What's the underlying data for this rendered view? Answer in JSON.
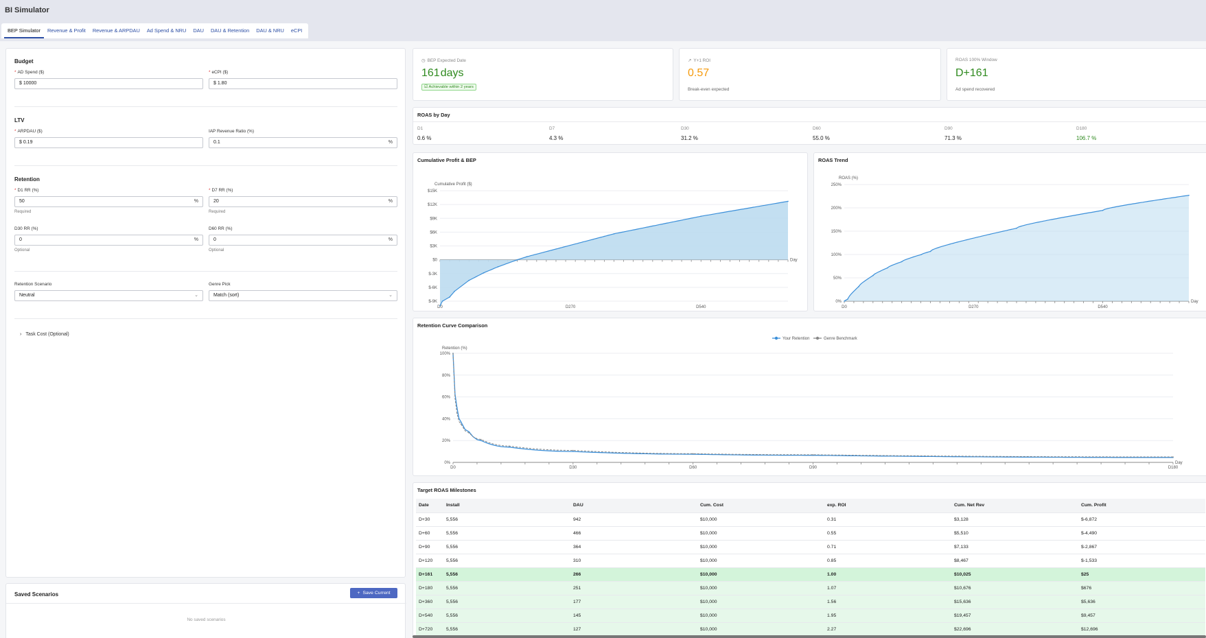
{
  "app": {
    "title": "BI Simulator"
  },
  "tabs": [
    {
      "label": "BEP Simulator"
    },
    {
      "label": "Revenue & Profit"
    },
    {
      "label": "Revenue & ARPDAU"
    },
    {
      "label": "Ad Spend & NRU"
    },
    {
      "label": "DAU"
    },
    {
      "label": "DAU & Retention"
    },
    {
      "label": "DAU & NRU"
    },
    {
      "label": "eCPI"
    }
  ],
  "form": {
    "budget": {
      "title": "Budget",
      "ad_spend_label": "AD Spend ($)",
      "ad_spend_value": "$ 10000",
      "ecpi_label": "eCPI ($)",
      "ecpi_value": "$ 1.80"
    },
    "ltv": {
      "title": "LTV",
      "arpdau_label": "ARPDAU ($)",
      "arpdau_value": "$ 0.19",
      "iap_label": "IAP Revenue Ratio (%)",
      "iap_value": "0.1",
      "suffix": "%"
    },
    "retention": {
      "title": "Retention",
      "d1_label": "D1 RR (%)",
      "d1_value": "50",
      "d7_label": "D7 RR (%)",
      "d7_value": "20",
      "d30_label": "D30 RR (%)",
      "d30_value": "0",
      "d60_label": "D60 RR (%)",
      "d60_value": "0",
      "required": "Required",
      "optional": "Optional",
      "suffix": "%"
    },
    "scenario_label": "Retention Scenario",
    "scenario_value": "Neutral",
    "genre_label": "Genre Pick",
    "genre_value": "Match (sort)",
    "task_cost_label": "Task Cost (Optional)"
  },
  "saved": {
    "title": "Saved Scenarios",
    "save_label": "Save Current",
    "empty_text": "No saved scenarios"
  },
  "metrics": {
    "bep": {
      "label": "BEP Expected Date",
      "value_num": "161",
      "value_unit": "days",
      "badge": "Achievable within 2 years"
    },
    "roi": {
      "label": "Y+1 ROI",
      "value": "0.57",
      "sub": "Break-even expected"
    },
    "window": {
      "label": "ROAS 100% Window",
      "value": "D+161",
      "sub": "Ad spend recovered"
    }
  },
  "roas_by_day": {
    "title": "ROAS by Day",
    "items": [
      {
        "day": "D1",
        "value": "0.6 %"
      },
      {
        "day": "D7",
        "value": "4.3 %"
      },
      {
        "day": "D30",
        "value": "31.2 %"
      },
      {
        "day": "D60",
        "value": "55.0 %"
      },
      {
        "day": "D90",
        "value": "71.3 %"
      },
      {
        "day": "D180",
        "value": "106.7 %"
      }
    ]
  },
  "colors": {
    "accent": "#4d68c2",
    "line": "#3b8fd9",
    "fill": "#bcdcf0",
    "positive": "#2f8a1f",
    "negative": "#d12d2d",
    "warning": "#f59a0c"
  },
  "chart_data": [
    {
      "type": "area",
      "title": "Cumulative Profit & BEP",
      "ylabel": "Cumulative Profit ($)",
      "xlabel": "Day",
      "yticks": [
        "$15K",
        "$12K",
        "$9K",
        "$6K",
        "$3K",
        "$0",
        "$-3K",
        "$-6K",
        "$-9K"
      ],
      "xticks": [
        "D0",
        "D270",
        "D540"
      ],
      "ylim": [
        -9000,
        15000
      ],
      "xlim": [
        0,
        720
      ],
      "x": [
        0,
        5,
        20,
        30,
        60,
        90,
        120,
        161,
        180,
        360,
        540,
        720
      ],
      "values": [
        -10000,
        -9000,
        -8100,
        -6872,
        -4490,
        -2867,
        -1533,
        25,
        676,
        5636,
        9457,
        12696
      ]
    },
    {
      "type": "area",
      "title": "ROAS Trend",
      "ylabel": "ROAS (%)",
      "xlabel": "Day",
      "yticks": [
        "250%",
        "200%",
        "150%",
        "100%",
        "50%",
        "0%"
      ],
      "xticks": [
        "D0",
        "D270",
        "D540"
      ],
      "ylim": [
        0,
        250
      ],
      "xlim": [
        0,
        720
      ],
      "x": [
        0,
        1,
        7,
        30,
        60,
        90,
        120,
        161,
        180,
        360,
        540,
        720
      ],
      "values": [
        0,
        0.6,
        4.3,
        31.2,
        55.0,
        71.3,
        84.7,
        100,
        106.7,
        156.4,
        194.6,
        226.9
      ]
    },
    {
      "type": "line",
      "title": "Retention Curve Comparison",
      "ylabel": "Retention (%)",
      "xlabel": "Day",
      "yticks": [
        "100%",
        "80%",
        "60%",
        "40%",
        "20%",
        "0%"
      ],
      "xticks": [
        "D0",
        "D30",
        "D60",
        "D90",
        "D180"
      ],
      "ylim": [
        0,
        100
      ],
      "xlim": [
        0,
        180
      ],
      "series": [
        {
          "name": "Your Retention",
          "x": [
            0,
            1,
            2,
            4,
            7,
            14,
            30,
            60,
            90,
            180
          ],
          "values": [
            100,
            50,
            37,
            28,
            20,
            14,
            10,
            7.5,
            6.5,
            4.5
          ]
        },
        {
          "name": "Genre Benchmark",
          "x": [
            0,
            1,
            2,
            4,
            7,
            14,
            30,
            60,
            90,
            180
          ],
          "values": [
            100,
            45,
            35,
            27,
            21,
            15,
            11,
            8,
            7,
            5
          ]
        }
      ]
    },
    {
      "type": "table",
      "title": "Target ROAS Milestones",
      "columns": [
        "Date",
        "Install",
        "DAU",
        "Cum. Cost",
        "exp. ROI",
        "Cum. Net Rev",
        "Cum. Profit"
      ],
      "rows": [
        [
          "D+30",
          "5,556",
          "942",
          "$10,000",
          "0.31",
          "$3,128",
          "$-6,872"
        ],
        [
          "D+60",
          "5,556",
          "466",
          "$10,000",
          "0.55",
          "$5,510",
          "$-4,490"
        ],
        [
          "D+90",
          "5,556",
          "364",
          "$10,000",
          "0.71",
          "$7,133",
          "$-2,867"
        ],
        [
          "D+120",
          "5,556",
          "310",
          "$10,000",
          "0.85",
          "$8,467",
          "$-1,533"
        ],
        [
          "D+161",
          "5,556",
          "266",
          "$10,000",
          "1.00",
          "$10,025",
          "$25"
        ],
        [
          "D+180",
          "5,556",
          "251",
          "$10,000",
          "1.07",
          "$10,676",
          "$676"
        ],
        [
          "D+360",
          "5,556",
          "177",
          "$10,000",
          "1.56",
          "$15,636",
          "$5,636"
        ],
        [
          "D+540",
          "5,556",
          "145",
          "$10,000",
          "1.95",
          "$19,457",
          "$9,457"
        ],
        [
          "D+720",
          "5,556",
          "127",
          "$10,000",
          "2.27",
          "$22,696",
          "$12,696"
        ]
      ]
    }
  ]
}
